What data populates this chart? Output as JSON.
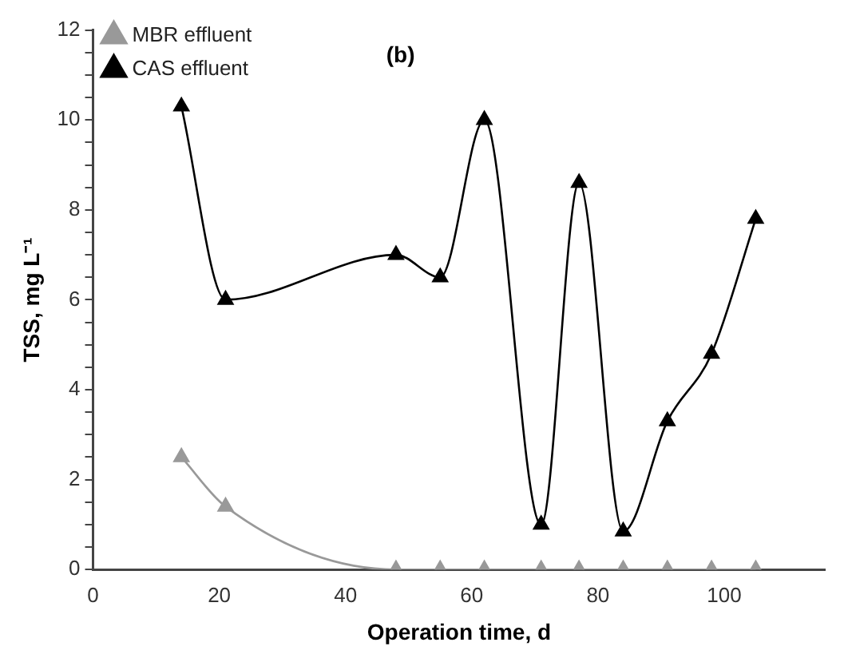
{
  "chart_data": {
    "type": "line",
    "xlabel": "Operation time, d",
    "ylabel": "TSS, mg L⁻¹",
    "annotations": [
      "(b)"
    ],
    "x": [
      14,
      21,
      48,
      55,
      62,
      71,
      77,
      84,
      91,
      98,
      105
    ],
    "series": [
      {
        "name": "MBR effluent",
        "color": "#999999",
        "values": [
          2.5,
          1.4,
          0,
          0,
          0,
          0,
          0,
          0,
          0,
          0,
          0
        ]
      },
      {
        "name": "CAS effluent",
        "color": "#000000",
        "values": [
          10.3,
          6.0,
          7.0,
          6.5,
          10.0,
          1.0,
          8.6,
          0.85,
          3.3,
          4.8,
          7.8
        ]
      }
    ],
    "xlim": [
      0,
      116
    ],
    "xticks": [
      0,
      20,
      40,
      60,
      80,
      100
    ],
    "ylim": [
      0,
      12
    ],
    "yticks": [
      0,
      {
        "value": 0.5,
        "label": null
      },
      2,
      {
        "value": 1,
        "label": null
      },
      {
        "value": 1.5,
        "label": null
      },
      {
        "value": 2.5,
        "label": null
      },
      {
        "value": 3,
        "label": null
      },
      {
        "value": 3.5,
        "label": null
      },
      4,
      {
        "value": 4.5,
        "label": null
      },
      {
        "value": 5,
        "label": null
      },
      {
        "value": 5.5,
        "label": null
      },
      6,
      {
        "value": 6.5,
        "label": null
      },
      {
        "value": 7,
        "label": null
      },
      {
        "value": 7.5,
        "label": null
      },
      8,
      {
        "value": 8.5,
        "label": null
      },
      {
        "value": 9,
        "label": null
      },
      {
        "value": 9.5,
        "label": null
      },
      10,
      {
        "value": 10.5,
        "label": null
      },
      {
        "value": 11,
        "label": null
      },
      {
        "value": 11.5,
        "label": null
      },
      12
    ],
    "grid": false,
    "legend": "top left",
    "marker": "triangle",
    "line_style": "solid"
  }
}
